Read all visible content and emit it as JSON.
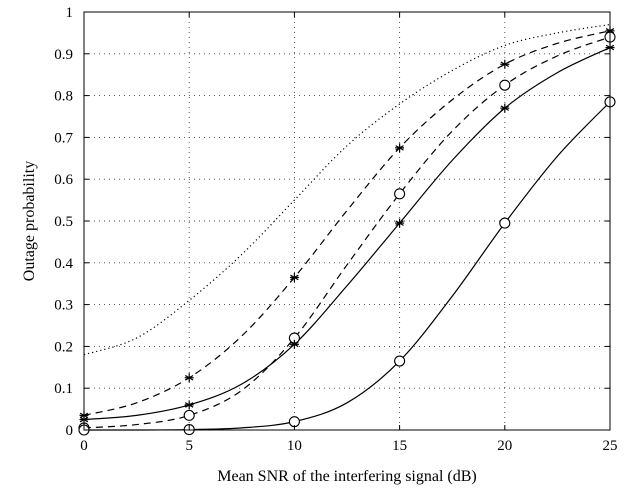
{
  "chart_data": {
    "type": "line",
    "title": "",
    "xlabel": "Mean SNR of the interfering signal (dB)",
    "ylabel": "Outage probability",
    "xlim": [
      0,
      25
    ],
    "ylim": [
      0,
      1
    ],
    "xticks": [
      0,
      5,
      10,
      15,
      20,
      25
    ],
    "yticks": [
      0,
      0.1,
      0.2,
      0.3,
      0.4,
      0.5,
      0.6,
      0.7,
      0.8,
      0.9,
      1
    ],
    "grid": true,
    "legend": "none",
    "series": [
      {
        "style": "dotted",
        "marker": "none",
        "x": [
          0,
          2.5,
          5,
          7.5,
          10,
          12.5,
          15,
          17.5,
          20,
          22.5,
          25
        ],
        "y": [
          0.18,
          0.22,
          0.31,
          0.42,
          0.55,
          0.68,
          0.78,
          0.86,
          0.92,
          0.95,
          0.97
        ]
      },
      {
        "style": "dashed",
        "marker": "star",
        "x": [
          0,
          2.5,
          5,
          7.5,
          10,
          12.5,
          15,
          17.5,
          20,
          22.5,
          25
        ],
        "y": [
          0.035,
          0.065,
          0.125,
          0.225,
          0.365,
          0.525,
          0.675,
          0.79,
          0.875,
          0.925,
          0.955
        ],
        "marker_x": [
          0,
          5,
          10,
          15,
          20,
          25
        ],
        "marker_y": [
          0.035,
          0.125,
          0.365,
          0.675,
          0.875,
          0.955
        ]
      },
      {
        "style": "dashed",
        "marker": "circle",
        "x": [
          0,
          2.5,
          5,
          7.5,
          10,
          12.5,
          15,
          17.5,
          20,
          22.5,
          25
        ],
        "y": [
          0.005,
          0.013,
          0.035,
          0.095,
          0.22,
          0.395,
          0.565,
          0.715,
          0.825,
          0.895,
          0.94
        ],
        "marker_x": [
          0,
          5,
          10,
          15,
          20,
          25
        ],
        "marker_y": [
          0.005,
          0.035,
          0.22,
          0.565,
          0.825,
          0.94
        ]
      },
      {
        "style": "solid",
        "marker": "star",
        "x": [
          0,
          2.5,
          5,
          7.5,
          10,
          12.5,
          15,
          17.5,
          20,
          22.5,
          25
        ],
        "y": [
          0.025,
          0.035,
          0.06,
          0.11,
          0.205,
          0.345,
          0.495,
          0.645,
          0.77,
          0.855,
          0.915
        ],
        "marker_x": [
          0,
          5,
          10,
          15,
          20,
          25
        ],
        "marker_y": [
          0.025,
          0.06,
          0.205,
          0.495,
          0.77,
          0.915
        ]
      },
      {
        "style": "solid",
        "marker": "circle",
        "x": [
          0,
          2.5,
          5,
          7.5,
          10,
          12.5,
          15,
          17.5,
          20,
          22.5,
          25
        ],
        "y": [
          0,
          0,
          0.001,
          0.005,
          0.02,
          0.065,
          0.165,
          0.32,
          0.495,
          0.655,
          0.785
        ],
        "marker_x": [
          0,
          5,
          10,
          15,
          20,
          25
        ],
        "marker_y": [
          0,
          0.001,
          0.02,
          0.165,
          0.495,
          0.785
        ]
      }
    ]
  }
}
